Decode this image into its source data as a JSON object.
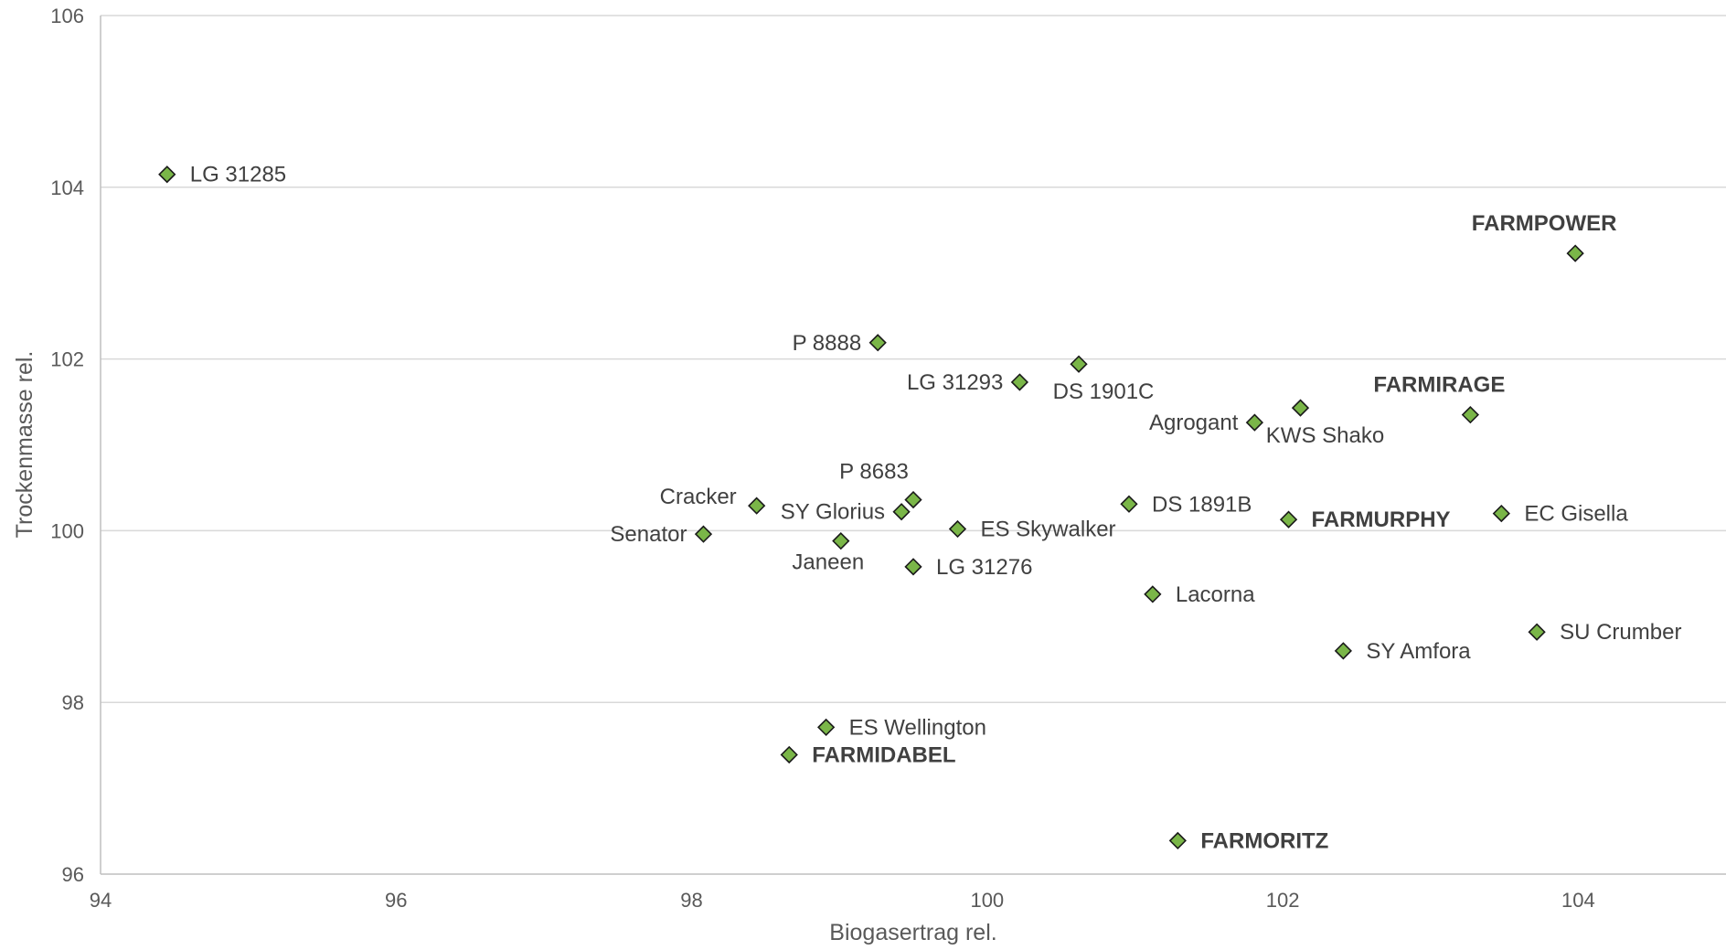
{
  "chart_data": {
    "type": "scatter",
    "title": "",
    "xlabel": "Biogasertrag rel.",
    "ylabel": "Trockenmasse rel.",
    "xlim": [
      94,
      105
    ],
    "ylim": [
      96,
      106
    ],
    "x_ticks": [
      "94",
      "96",
      "98",
      "100",
      "102",
      "104"
    ],
    "y_ticks": [
      "96",
      "98",
      "100",
      "102",
      "104",
      "106"
    ],
    "grid": "horizontal",
    "marker": "diamond",
    "marker_color": "#7ab648",
    "marker_edge_color": "#1a1a1a",
    "points": [
      {
        "label": "LG 31285",
        "x": 94.45,
        "y": 104.15,
        "bold": false,
        "pos": "right"
      },
      {
        "label": "FARMPOWER",
        "x": 103.98,
        "y": 103.23,
        "bold": true,
        "pos": "above"
      },
      {
        "label": "P 8888",
        "x": 99.26,
        "y": 102.19,
        "bold": false,
        "pos": "left"
      },
      {
        "label": "DS 1901C",
        "x": 100.62,
        "y": 101.94,
        "bold": false,
        "pos": "below-left"
      },
      {
        "label": "LG 31293",
        "x": 100.22,
        "y": 101.73,
        "bold": false,
        "pos": "left"
      },
      {
        "label": "KWS Shako",
        "x": 102.12,
        "y": 101.43,
        "bold": false,
        "pos": "below-left"
      },
      {
        "label": "FARMIRAGE",
        "x": 103.27,
        "y": 101.35,
        "bold": true,
        "pos": "above"
      },
      {
        "label": "Agrogant",
        "x": 101.81,
        "y": 101.26,
        "bold": false,
        "pos": "left"
      },
      {
        "label": "P 8683",
        "x": 99.5,
        "y": 100.36,
        "bold": false,
        "pos": "above-left"
      },
      {
        "label": "DS 1891B",
        "x": 100.96,
        "y": 100.31,
        "bold": false,
        "pos": "right"
      },
      {
        "label": "Cracker",
        "x": 98.44,
        "y": 100.29,
        "bold": false,
        "pos": "left-above"
      },
      {
        "label": "SY Glorius",
        "x": 99.42,
        "y": 100.22,
        "bold": false,
        "pos": "left"
      },
      {
        "label": "EC Gisella",
        "x": 103.48,
        "y": 100.2,
        "bold": false,
        "pos": "right"
      },
      {
        "label": "FARMURPHY",
        "x": 102.04,
        "y": 100.13,
        "bold": true,
        "pos": "right"
      },
      {
        "label": "ES Skywalker",
        "x": 99.8,
        "y": 100.02,
        "bold": false,
        "pos": "right"
      },
      {
        "label": "Senator",
        "x": 98.08,
        "y": 99.96,
        "bold": false,
        "pos": "left"
      },
      {
        "label": "Janeen",
        "x": 99.01,
        "y": 99.88,
        "bold": false,
        "pos": "below"
      },
      {
        "label": "LG 31276",
        "x": 99.5,
        "y": 99.58,
        "bold": false,
        "pos": "right"
      },
      {
        "label": "Lacorna",
        "x": 101.12,
        "y": 99.26,
        "bold": false,
        "pos": "right"
      },
      {
        "label": "SU Crumber",
        "x": 103.72,
        "y": 98.82,
        "bold": false,
        "pos": "right"
      },
      {
        "label": "SY Amfora",
        "x": 102.41,
        "y": 98.6,
        "bold": false,
        "pos": "right"
      },
      {
        "label": "ES Wellington",
        "x": 98.91,
        "y": 97.71,
        "bold": false,
        "pos": "right"
      },
      {
        "label": "FARMIDABEL",
        "x": 98.66,
        "y": 97.39,
        "bold": true,
        "pos": "right"
      },
      {
        "label": "FARMORITZ",
        "x": 101.29,
        "y": 96.39,
        "bold": true,
        "pos": "right"
      }
    ]
  }
}
